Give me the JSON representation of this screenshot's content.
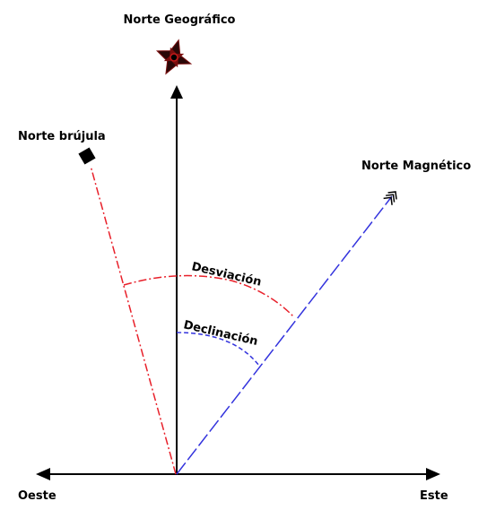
{
  "labels": {
    "north_geographic": "Norte Geográfico",
    "north_compass": "Norte brújula",
    "north_magnetic": "Norte Magnético",
    "deviation": "Desviación",
    "declination": "Declinación",
    "west": "Oeste",
    "east": "Este"
  },
  "colors": {
    "axis": "#000000",
    "compass_line": "#e8202a",
    "magnetic_line": "#3333dd",
    "deviation_arc": "#e8202a",
    "declination_arc": "#3333dd",
    "compass_rose": "#7a0e0e"
  },
  "icons": {
    "compass_rose": "compass-rose-icon",
    "compass_marker": "square-marker-icon",
    "magnetic_arrow": "triple-chevron-arrow-icon"
  }
}
